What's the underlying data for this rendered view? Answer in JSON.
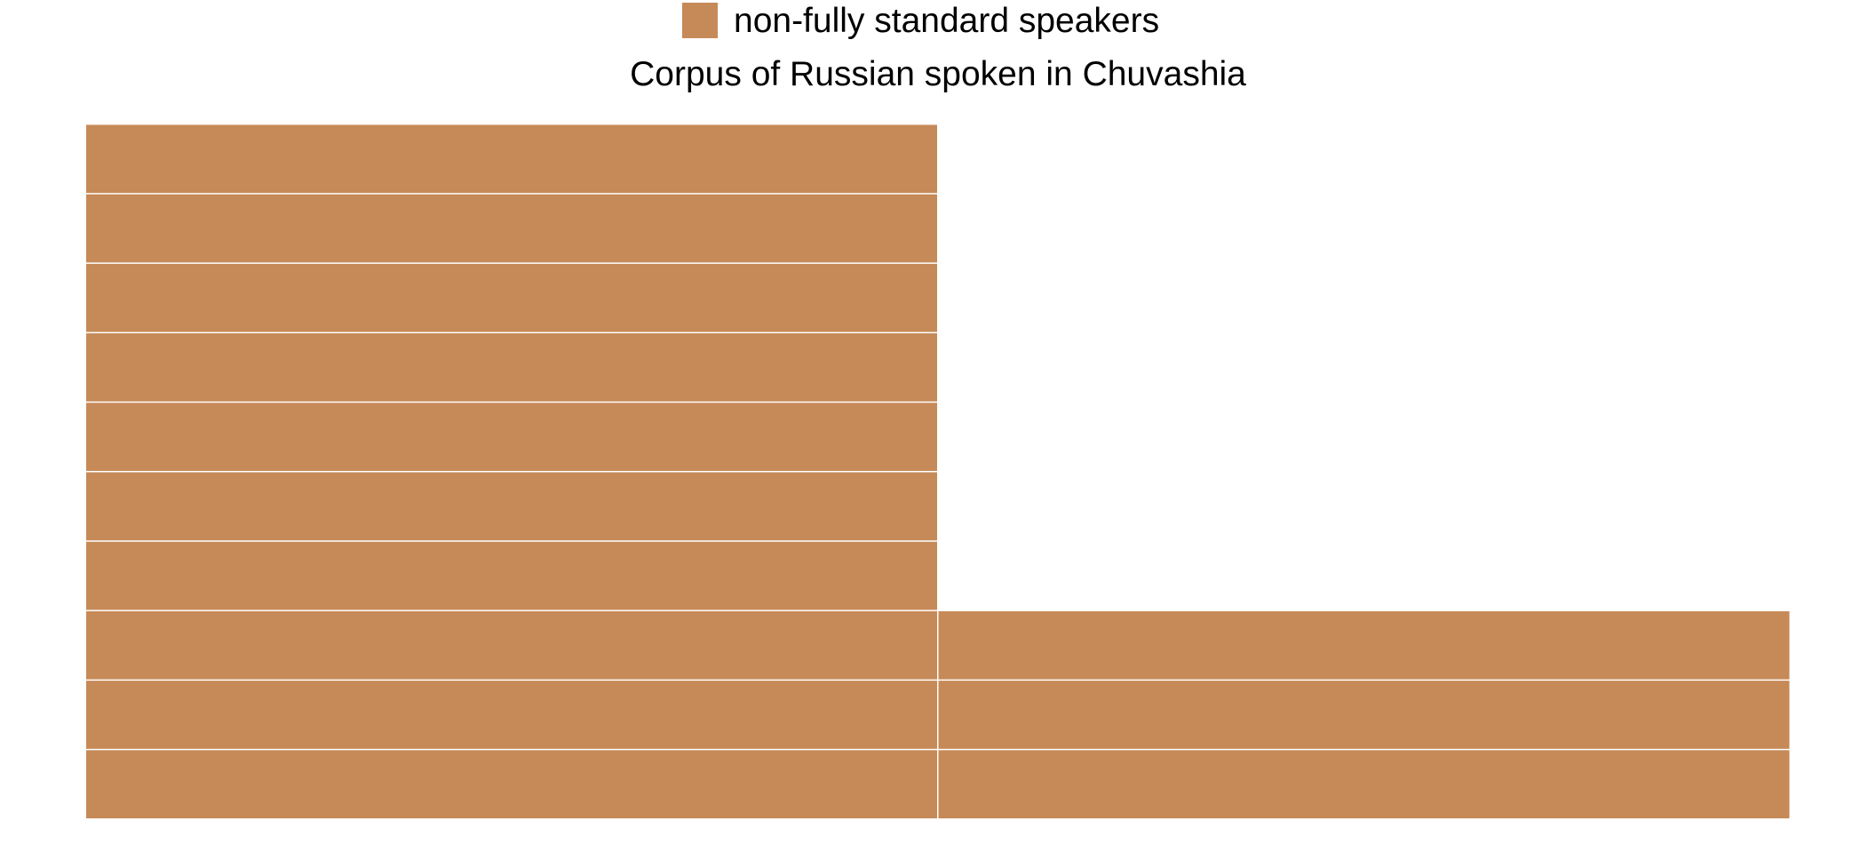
{
  "chart_data": {
    "type": "waffle",
    "title": "Corpus of Russian spoken in Chuvashia",
    "legend": {
      "placement": "top",
      "entries": [
        {
          "name": "non-fully standard speakers",
          "color": "#C68A58"
        }
      ]
    },
    "unit_color": "#C68A58",
    "columns": [
      {
        "index": 1,
        "units": 10
      },
      {
        "index": 2,
        "units": 3
      }
    ],
    "total_units": 13,
    "grid": false
  }
}
